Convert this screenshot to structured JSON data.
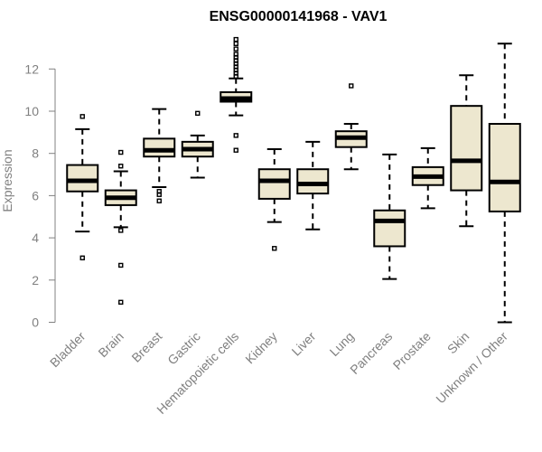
{
  "chart_data": {
    "type": "boxplot",
    "title": "ENSG00000141968 - VAV1",
    "xlabel": "",
    "ylabel": "Expression",
    "ylim": [
      0,
      13.5
    ],
    "yticks": [
      0,
      2,
      4,
      6,
      8,
      10,
      12
    ],
    "grid": false,
    "colors": {
      "box_fill": "#ede7cf",
      "stroke": "#000000",
      "axis": "#808080",
      "label": "#808080"
    },
    "categories": [
      "Bladder",
      "Brain",
      "Breast",
      "Gastric",
      "Hematopoietic cells",
      "Kidney",
      "Liver",
      "Lung",
      "Pancreas",
      "Prostate",
      "Skin",
      "Unknown / Other"
    ],
    "boxes": [
      {
        "category": "Bladder",
        "lower_whisker": 4.3,
        "q1": 6.2,
        "median": 6.7,
        "q3": 7.45,
        "upper_whisker": 9.15,
        "outliers": [
          3.05,
          9.75
        ]
      },
      {
        "category": "Brain",
        "lower_whisker": 4.5,
        "q1": 5.55,
        "median": 5.9,
        "q3": 6.25,
        "upper_whisker": 7.15,
        "outliers": [
          0.95,
          2.7,
          4.35,
          7.4,
          8.05
        ]
      },
      {
        "category": "Breast",
        "lower_whisker": 6.4,
        "q1": 7.85,
        "median": 8.15,
        "q3": 8.7,
        "upper_whisker": 10.1,
        "outliers": [
          5.75,
          6.05,
          6.2
        ]
      },
      {
        "category": "Gastric",
        "lower_whisker": 6.85,
        "q1": 7.85,
        "median": 8.2,
        "q3": 8.55,
        "upper_whisker": 8.85,
        "outliers": [
          9.9
        ]
      },
      {
        "category": "Hematopoietic cells",
        "lower_whisker": 9.8,
        "q1": 10.45,
        "median": 10.6,
        "q3": 10.9,
        "upper_whisker": 11.55,
        "outliers": [
          8.15,
          8.85,
          11.65,
          11.8,
          11.95,
          12.1,
          12.25,
          12.4,
          12.55,
          12.7,
          12.95,
          13.2,
          13.4
        ]
      },
      {
        "category": "Kidney",
        "lower_whisker": 4.75,
        "q1": 5.85,
        "median": 6.7,
        "q3": 7.25,
        "upper_whisker": 8.2,
        "outliers": [
          3.5
        ]
      },
      {
        "category": "Liver",
        "lower_whisker": 4.4,
        "q1": 6.1,
        "median": 6.55,
        "q3": 7.25,
        "upper_whisker": 8.55,
        "outliers": []
      },
      {
        "category": "Lung",
        "lower_whisker": 7.25,
        "q1": 8.3,
        "median": 8.75,
        "q3": 9.05,
        "upper_whisker": 9.4,
        "outliers": [
          11.2
        ]
      },
      {
        "category": "Pancreas",
        "lower_whisker": 2.05,
        "q1": 3.6,
        "median": 4.8,
        "q3": 5.3,
        "upper_whisker": 7.95,
        "outliers": []
      },
      {
        "category": "Prostate",
        "lower_whisker": 5.4,
        "q1": 6.5,
        "median": 6.9,
        "q3": 7.35,
        "upper_whisker": 8.25,
        "outliers": []
      },
      {
        "category": "Skin",
        "lower_whisker": 4.55,
        "q1": 6.25,
        "median": 7.65,
        "q3": 10.25,
        "upper_whisker": 11.7,
        "outliers": []
      },
      {
        "category": "Unknown / Other",
        "lower_whisker": 0.0,
        "q1": 5.25,
        "median": 6.65,
        "q3": 9.4,
        "upper_whisker": 13.2,
        "outliers": []
      }
    ]
  }
}
